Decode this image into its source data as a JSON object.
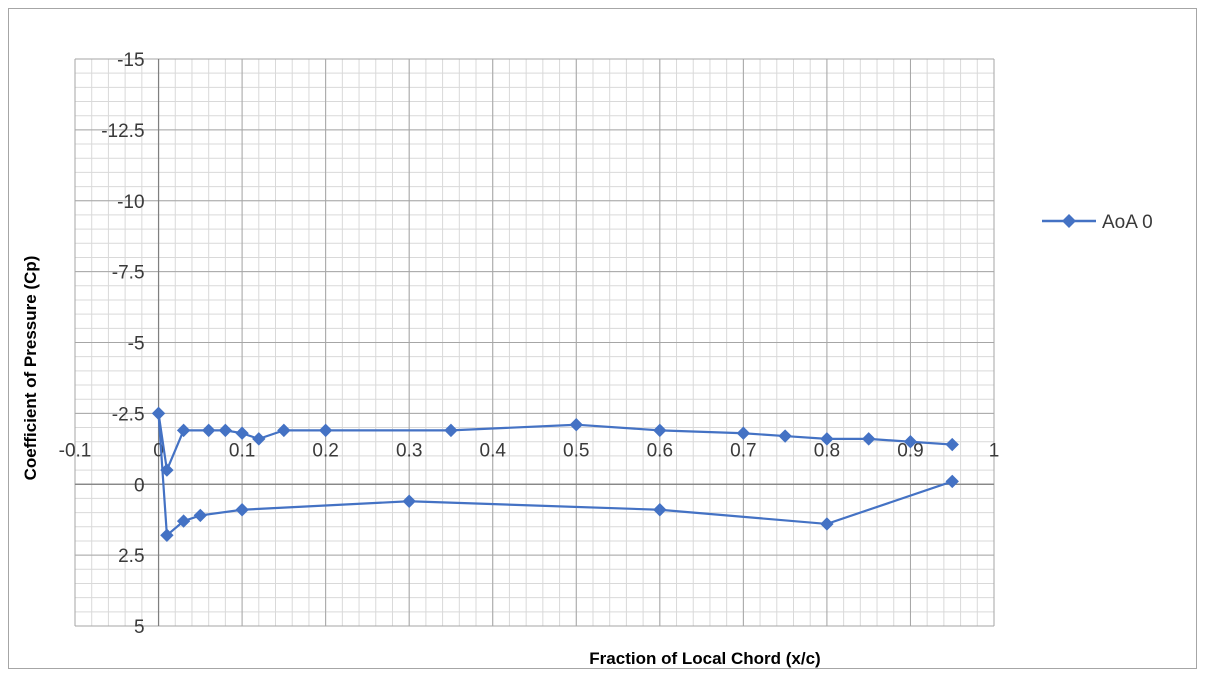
{
  "chart_data": {
    "type": "scatter",
    "xlabel": "Fraction of Local Chord (x/c)",
    "ylabel": "Coefficient of Pressure (Cp)",
    "xlim": [
      -0.1,
      1
    ],
    "ylim": [
      5,
      -15
    ],
    "y_reversed": true,
    "xticks": [
      -0.1,
      0,
      0.1,
      0.2,
      0.3,
      0.4,
      0.5,
      0.6,
      0.7,
      0.8,
      0.9,
      1
    ],
    "xtick_labels": [
      "-0.1",
      "0",
      "0.1",
      "0.2",
      "0.3",
      "0.4",
      "0.5",
      "0.6",
      "0.7",
      "0.8",
      "0.9",
      "1"
    ],
    "yticks": [
      -15,
      -12.5,
      -10,
      -7.5,
      -5,
      -2.5,
      0,
      2.5,
      5
    ],
    "ytick_labels": [
      "-15",
      "-12.5",
      "-10",
      "-7.5",
      "-5",
      "-2.5",
      "0",
      "2.5",
      "5"
    ],
    "grid": true,
    "legend_position": "right",
    "series": [
      {
        "name": "AoA 0",
        "color": "#4472C4",
        "marker": "diamond",
        "x": [
          0.95,
          0.9,
          0.85,
          0.8,
          0.75,
          0.7,
          0.6,
          0.5,
          0.35,
          0.2,
          0.15,
          0.12,
          0.1,
          0.08,
          0.06,
          0.03,
          0.01,
          0,
          0.01,
          0.03,
          0.05,
          0.1,
          0.3,
          0.6,
          0.8,
          0.95
        ],
        "y": [
          -1.4,
          -1.5,
          -1.6,
          -1.6,
          -1.7,
          -1.8,
          -1.9,
          -2.1,
          -1.9,
          -1.9,
          -1.9,
          -1.6,
          -1.8,
          -1.9,
          -1.9,
          -1.9,
          -0.5,
          -2.5,
          1.8,
          1.3,
          1.1,
          0.9,
          0.6,
          0.9,
          1.4,
          -0.1
        ],
        "x_plotted": [
          0.95,
          0.9,
          0.85,
          0.8,
          0.75,
          0.7,
          0.6,
          0.5,
          0.35,
          0.2,
          0.15,
          0.12,
          0.1,
          0.08,
          0.06,
          0.03,
          0.01,
          0,
          0.01,
          0.03,
          0.05,
          0.1,
          0.3,
          0.6,
          0.8,
          0.95
        ],
        "y_plotted": [
          -1.4,
          -1.5,
          -1.6,
          -1.6,
          -1.7,
          -1.8,
          -1.9,
          -2.1,
          -1.9,
          -1.9,
          -1.9,
          -1.6,
          -1.8,
          -1.9,
          -1.9,
          -1.9,
          -0.5,
          -2.5,
          1.8,
          1.3,
          1.1,
          0.9,
          0.6,
          0.9,
          1.4,
          -0.1
        ]
      }
    ]
  }
}
